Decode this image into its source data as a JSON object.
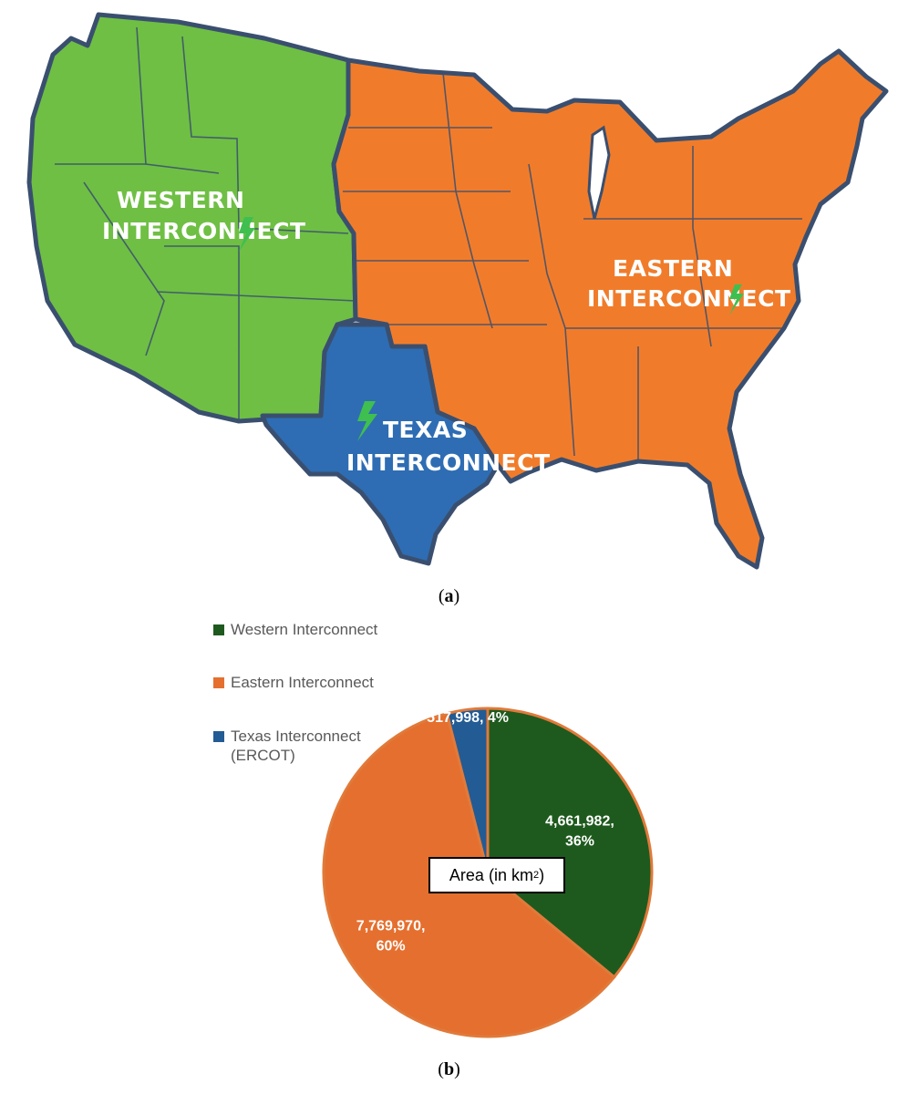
{
  "map": {
    "labels": {
      "western": [
        "WESTERN",
        "INTERCONNECT"
      ],
      "eastern": [
        "EASTERN",
        "INTERCONNECT"
      ],
      "texas": [
        "TEXAS",
        "INTERCONNECT"
      ]
    },
    "icon": "lightning-bolt-icon",
    "colors": {
      "western": "#6fbf44",
      "eastern": "#f07c2b",
      "texas": "#2e6db3",
      "border": "#3a4f6f",
      "bolt": "#3fbf4f"
    }
  },
  "captions": {
    "a": "a",
    "b": "b"
  },
  "pie_box": {
    "prefix": "Area (in km",
    "sup": "2",
    "suffix": ")"
  },
  "chart_data": {
    "type": "pie",
    "title": "",
    "legend_position": "left",
    "series": [
      {
        "name": "Western Interconnect",
        "value": 4661982,
        "percent": 36,
        "color": "#1e5a1e",
        "label_line1": "4,661,982,",
        "label_line2": "36%"
      },
      {
        "name": "Eastern Interconnect",
        "value": 7769970,
        "percent": 60,
        "color": "#e56f2f",
        "label_line1": "7,769,970,",
        "label_line2": "60%"
      },
      {
        "name": "Texas Interconnect (ERCOT)",
        "name_line1": "Texas Interconnect",
        "name_line2": "(ERCOT)",
        "value": 517998,
        "percent": 4,
        "color": "#235b94",
        "label_line1": "517,998, 4%",
        "label_line2": ""
      }
    ]
  }
}
